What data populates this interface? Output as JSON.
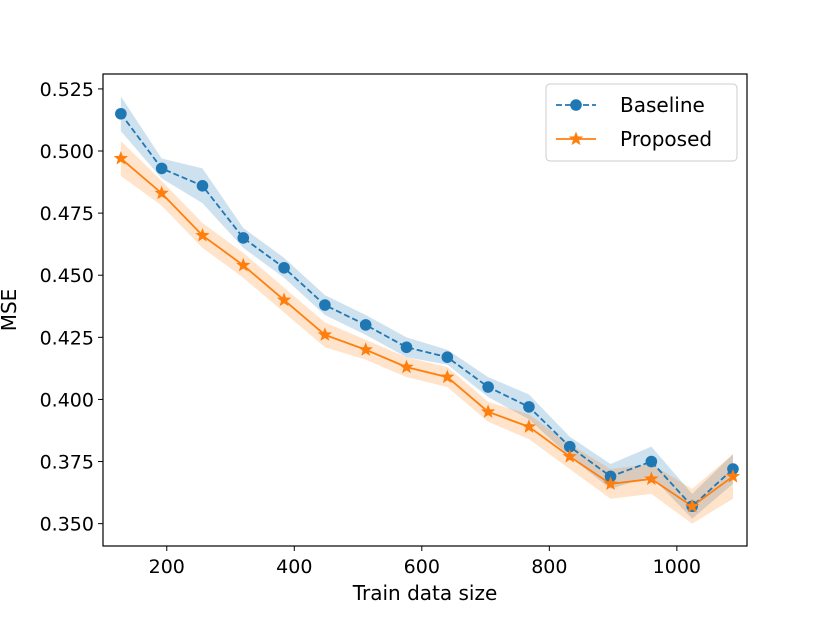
{
  "chart_data": {
    "type": "line",
    "title": "",
    "xlabel": "Train data size",
    "ylabel": "MSE",
    "xlim": [
      100,
      1110
    ],
    "ylim": [
      0.341,
      0.531
    ],
    "xticks": [
      200,
      400,
      600,
      800,
      1000
    ],
    "yticks": [
      0.35,
      0.375,
      0.4,
      0.425,
      0.45,
      0.475,
      0.5,
      0.525
    ],
    "xtick_labels": [
      "200",
      "400",
      "600",
      "800",
      "1000"
    ],
    "ytick_labels": [
      "0.350",
      "0.375",
      "0.400",
      "0.425",
      "0.450",
      "0.475",
      "0.500",
      "0.525"
    ],
    "x": [
      128,
      192,
      256,
      320,
      384,
      448,
      512,
      576,
      640,
      704,
      768,
      832,
      896,
      960,
      1024,
      1088
    ],
    "legend_position": "top-right",
    "grid": false,
    "series": [
      {
        "name": "Baseline",
        "color": "#1f77b4",
        "marker": "circle",
        "linestyle": "dashed",
        "values": [
          0.515,
          0.493,
          0.486,
          0.465,
          0.453,
          0.438,
          0.43,
          0.421,
          0.417,
          0.405,
          0.397,
          0.381,
          0.369,
          0.375,
          0.357,
          0.372
        ],
        "band_lower": [
          0.508,
          0.489,
          0.479,
          0.461,
          0.449,
          0.434,
          0.426,
          0.417,
          0.414,
          0.401,
          0.392,
          0.377,
          0.364,
          0.369,
          0.352,
          0.366
        ],
        "band_upper": [
          0.522,
          0.497,
          0.493,
          0.469,
          0.457,
          0.442,
          0.434,
          0.425,
          0.42,
          0.409,
          0.402,
          0.385,
          0.374,
          0.381,
          0.362,
          0.378
        ]
      },
      {
        "name": "Proposed",
        "color": "#ff7f0e",
        "marker": "star",
        "linestyle": "solid",
        "values": [
          0.497,
          0.483,
          0.466,
          0.454,
          0.44,
          0.426,
          0.42,
          0.413,
          0.409,
          0.395,
          0.389,
          0.377,
          0.366,
          0.368,
          0.357,
          0.369
        ],
        "band_lower": [
          0.49,
          0.478,
          0.461,
          0.449,
          0.435,
          0.421,
          0.416,
          0.409,
          0.405,
          0.391,
          0.384,
          0.372,
          0.36,
          0.362,
          0.35,
          0.36
        ],
        "band_upper": [
          0.504,
          0.488,
          0.471,
          0.459,
          0.445,
          0.431,
          0.424,
          0.417,
          0.413,
          0.399,
          0.394,
          0.382,
          0.372,
          0.374,
          0.364,
          0.378
        ]
      }
    ]
  }
}
